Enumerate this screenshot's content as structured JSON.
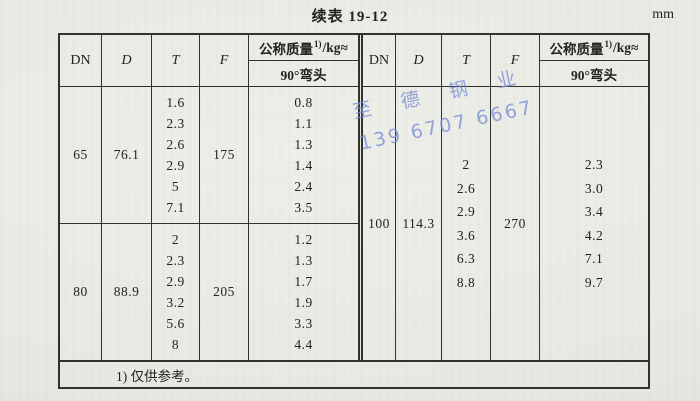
{
  "page": {
    "title": "续表 19-12",
    "unit": "mm",
    "footnote": "1) 仅供参考。"
  },
  "header": {
    "col_dn": "DN",
    "col_d": "D",
    "col_t": "T",
    "col_f": "F",
    "mass_prefix": "公称质量",
    "mass_sup": "1)",
    "mass_suffix": "/kg≈",
    "mass_sub": "90°弯头"
  },
  "watermark": {
    "line1": "至 德 钢 业",
    "line2": "139 6707 6667",
    "color": "#7c8fd6"
  },
  "colors": {
    "paper": "#e9eae4",
    "line": "#32322b",
    "ink": "#23231d"
  },
  "left_table": {
    "sections": [
      {
        "dn": "65",
        "d": "76.1",
        "f": "175",
        "t": [
          "1.6",
          "2.3",
          "2.6",
          "2.9",
          "5",
          "7.1"
        ],
        "mass": [
          "0.8",
          "1.1",
          "1.3",
          "1.4",
          "2.4",
          "3.5"
        ]
      },
      {
        "dn": "80",
        "d": "88.9",
        "f": "205",
        "t": [
          "2",
          "2.3",
          "2.9",
          "3.2",
          "5.6",
          "8"
        ],
        "mass": [
          "1.2",
          "1.3",
          "1.7",
          "1.9",
          "3.3",
          "4.4"
        ]
      }
    ]
  },
  "right_table": {
    "sections": [
      {
        "dn": "100",
        "d": "114.3",
        "f": "270",
        "t": [
          "2",
          "2.6",
          "2.9",
          "3.6",
          "6.3",
          "8.8"
        ],
        "mass": [
          "2.3",
          "3.0",
          "3.4",
          "4.2",
          "7.1",
          "9.7"
        ]
      }
    ]
  }
}
